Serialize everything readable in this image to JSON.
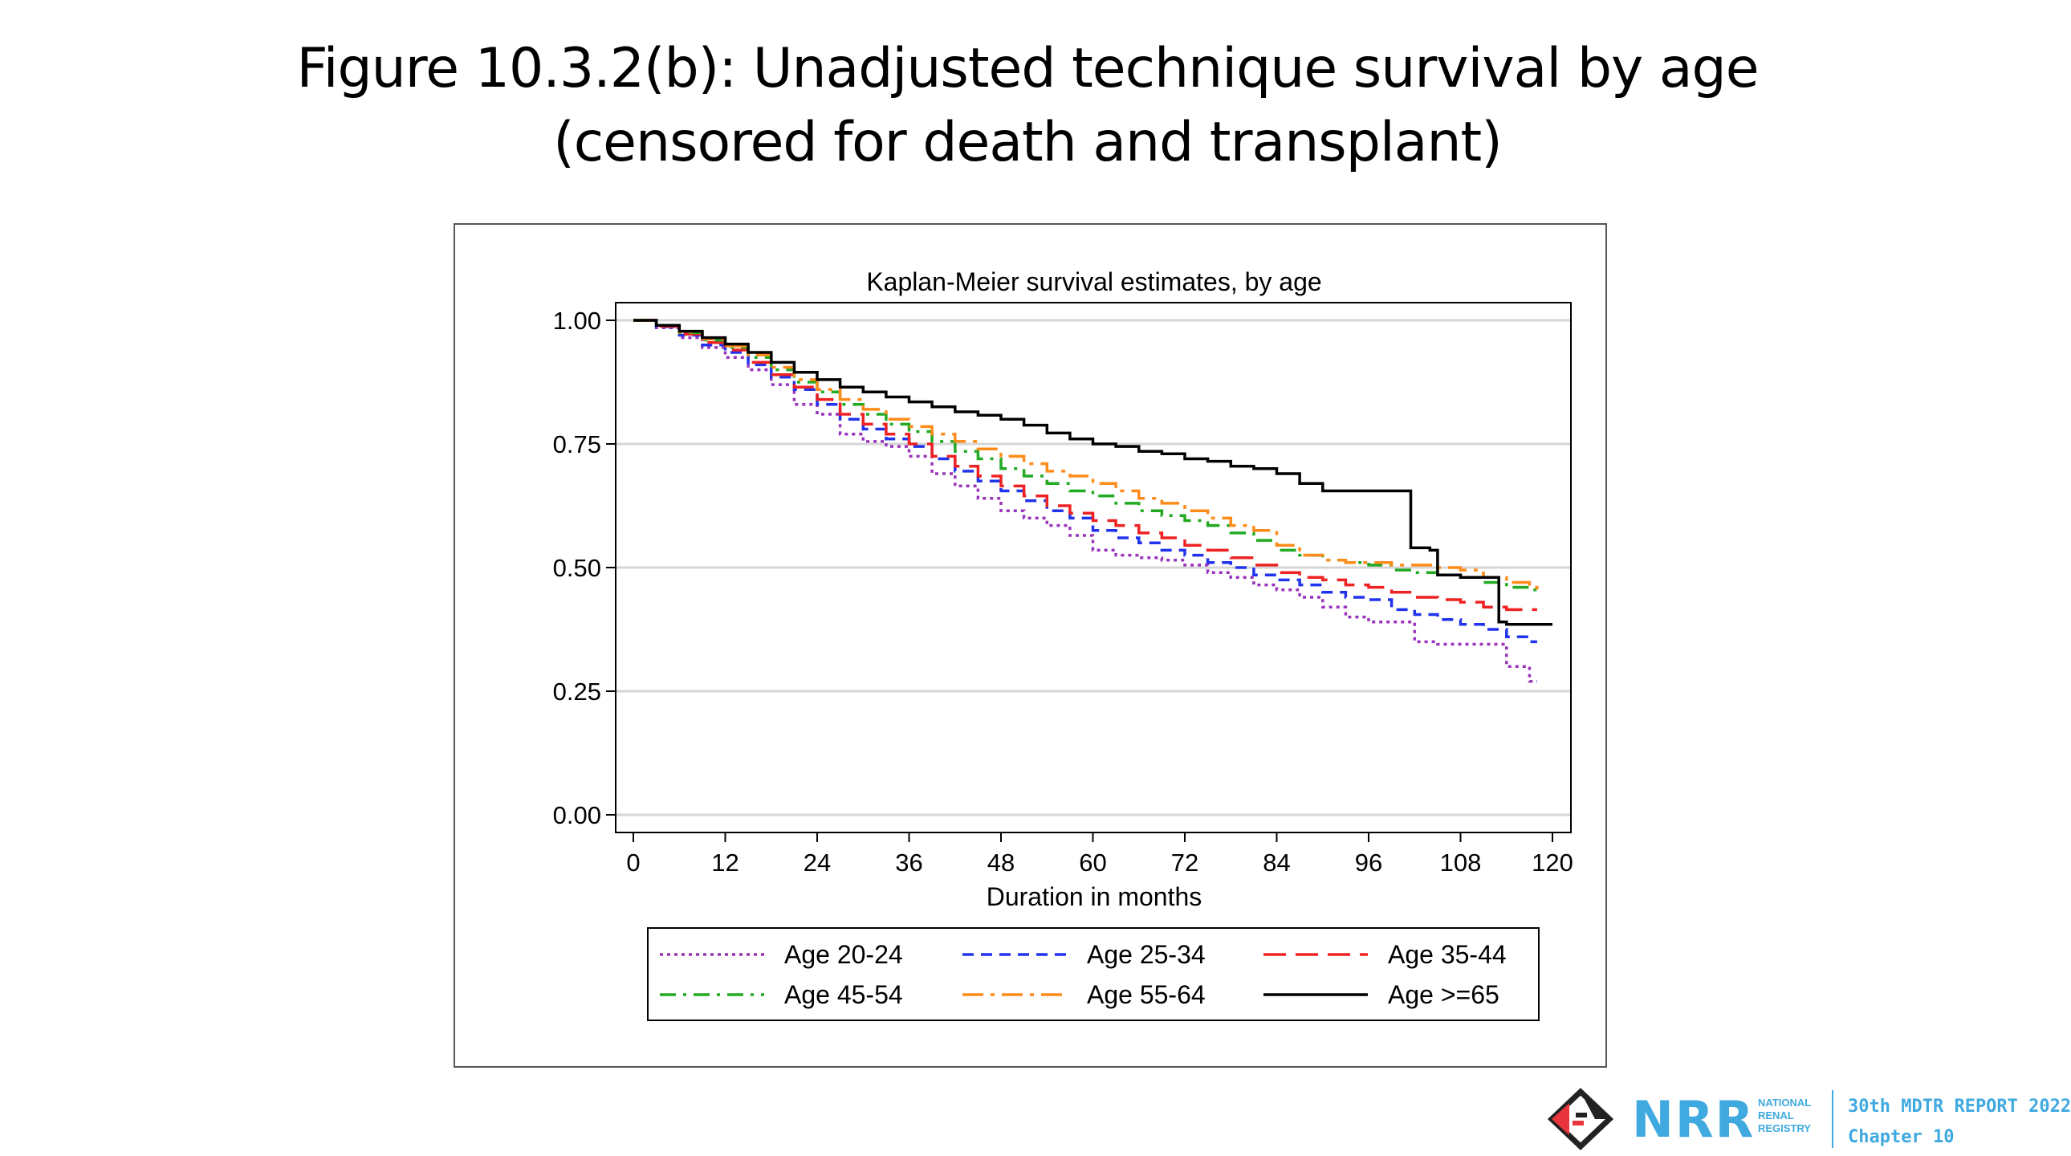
{
  "slide": {
    "title_line1": "Figure 10.3.2(b): Unadjusted technique survival by age",
    "title_line2": "(censored for death and transplant)"
  },
  "footer": {
    "org_line1": "NATIONAL",
    "org_line2": "RENAL",
    "org_line3": "REGISTRY",
    "logo_text": "NRR",
    "report": "30th MDTR REPORT 2022",
    "chapter": "Chapter 10",
    "colors": {
      "brand_blue": "#3fa9e0",
      "mark_red": "#e8343c",
      "mark_black": "#222222"
    }
  },
  "chart_data": {
    "type": "line",
    "title": "Kaplan-Meier survival estimates, by age",
    "xlabel": "Duration in months",
    "ylabel": "",
    "xlim": [
      0,
      120
    ],
    "ylim": [
      0,
      1
    ],
    "xticks": [
      0,
      12,
      24,
      36,
      48,
      60,
      72,
      84,
      96,
      108,
      120
    ],
    "yticks": [
      "0.00",
      "0.25",
      "0.50",
      "0.75",
      "1.00"
    ],
    "ytick_values": [
      0,
      0.25,
      0.5,
      0.75,
      1
    ],
    "grid": true,
    "legend_position": "bottom",
    "series": [
      {
        "name": "Age 20-24",
        "color": "#9933bb",
        "dash": "dotted",
        "x": [
          0,
          3,
          6,
          9,
          12,
          15,
          18,
          21,
          24,
          27,
          30,
          33,
          36,
          39,
          42,
          45,
          48,
          51,
          54,
          57,
          60,
          63,
          66,
          69,
          72,
          75,
          78,
          81,
          84,
          87,
          90,
          93,
          96,
          99,
          102,
          105,
          108,
          111,
          114,
          117,
          118
        ],
        "y": [
          1.0,
          0.985,
          0.965,
          0.945,
          0.925,
          0.9,
          0.87,
          0.83,
          0.81,
          0.77,
          0.755,
          0.745,
          0.725,
          0.69,
          0.665,
          0.64,
          0.615,
          0.6,
          0.585,
          0.565,
          0.535,
          0.525,
          0.52,
          0.515,
          0.505,
          0.49,
          0.48,
          0.465,
          0.455,
          0.44,
          0.42,
          0.4,
          0.39,
          0.39,
          0.35,
          0.345,
          0.345,
          0.345,
          0.3,
          0.27,
          0.27
        ]
      },
      {
        "name": "Age 25-34",
        "color": "#2233ee",
        "dash": "dashed",
        "x": [
          0,
          3,
          6,
          9,
          12,
          15,
          18,
          21,
          24,
          27,
          30,
          33,
          36,
          39,
          42,
          45,
          48,
          51,
          54,
          57,
          60,
          63,
          66,
          69,
          72,
          75,
          78,
          81,
          84,
          87,
          90,
          93,
          96,
          99,
          102,
          105,
          108,
          111,
          114,
          117,
          118
        ],
        "y": [
          1.0,
          0.987,
          0.97,
          0.95,
          0.935,
          0.91,
          0.885,
          0.86,
          0.83,
          0.8,
          0.78,
          0.76,
          0.745,
          0.72,
          0.695,
          0.675,
          0.655,
          0.635,
          0.615,
          0.6,
          0.575,
          0.56,
          0.55,
          0.535,
          0.525,
          0.51,
          0.5,
          0.485,
          0.475,
          0.465,
          0.45,
          0.44,
          0.435,
          0.415,
          0.405,
          0.395,
          0.385,
          0.375,
          0.36,
          0.35,
          0.35
        ]
      },
      {
        "name": "Age 35-44",
        "color": "#ee2222",
        "dash": "longdash",
        "x": [
          0,
          3,
          6,
          9,
          12,
          15,
          18,
          21,
          24,
          27,
          30,
          33,
          36,
          39,
          42,
          45,
          48,
          51,
          54,
          57,
          60,
          63,
          66,
          69,
          72,
          75,
          78,
          81,
          84,
          87,
          90,
          93,
          96,
          99,
          102,
          105,
          108,
          111,
          114,
          117,
          118
        ],
        "y": [
          1.0,
          0.988,
          0.972,
          0.955,
          0.94,
          0.915,
          0.89,
          0.865,
          0.84,
          0.81,
          0.79,
          0.77,
          0.75,
          0.725,
          0.705,
          0.685,
          0.665,
          0.645,
          0.625,
          0.61,
          0.595,
          0.585,
          0.57,
          0.56,
          0.545,
          0.535,
          0.52,
          0.505,
          0.49,
          0.48,
          0.475,
          0.465,
          0.46,
          0.45,
          0.44,
          0.435,
          0.43,
          0.42,
          0.415,
          0.415,
          0.415
        ]
      },
      {
        "name": "Age 45-54",
        "color": "#22aa22",
        "dash": "dashdot",
        "x": [
          0,
          3,
          6,
          9,
          12,
          15,
          18,
          21,
          24,
          27,
          30,
          33,
          36,
          39,
          42,
          45,
          48,
          51,
          54,
          57,
          60,
          63,
          66,
          69,
          72,
          75,
          78,
          81,
          84,
          87,
          90,
          93,
          96,
          99,
          102,
          105,
          108,
          111,
          114,
          117,
          118
        ],
        "y": [
          1.0,
          0.99,
          0.975,
          0.96,
          0.945,
          0.925,
          0.9,
          0.875,
          0.855,
          0.83,
          0.81,
          0.79,
          0.775,
          0.755,
          0.735,
          0.72,
          0.7,
          0.685,
          0.67,
          0.655,
          0.645,
          0.63,
          0.615,
          0.605,
          0.595,
          0.585,
          0.57,
          0.555,
          0.535,
          0.525,
          0.515,
          0.51,
          0.505,
          0.495,
          0.49,
          0.485,
          0.48,
          0.47,
          0.46,
          0.455,
          0.455
        ]
      },
      {
        "name": "Age 55-64",
        "color": "#ff8c1a",
        "dash": "longdashdot",
        "x": [
          0,
          3,
          6,
          9,
          12,
          15,
          18,
          21,
          24,
          27,
          30,
          33,
          36,
          39,
          42,
          45,
          48,
          51,
          54,
          57,
          60,
          63,
          66,
          69,
          72,
          75,
          78,
          81,
          84,
          87,
          90,
          93,
          96,
          99,
          102,
          105,
          108,
          111,
          114,
          117,
          118
        ],
        "y": [
          1.0,
          0.99,
          0.976,
          0.962,
          0.948,
          0.93,
          0.905,
          0.88,
          0.86,
          0.84,
          0.82,
          0.8,
          0.785,
          0.77,
          0.755,
          0.74,
          0.725,
          0.71,
          0.695,
          0.685,
          0.67,
          0.655,
          0.64,
          0.63,
          0.615,
          0.6,
          0.585,
          0.575,
          0.545,
          0.525,
          0.515,
          0.51,
          0.51,
          0.505,
          0.505,
          0.5,
          0.495,
          0.48,
          0.47,
          0.46,
          0.45
        ]
      },
      {
        "name": "Age >=65",
        "color": "#000000",
        "dash": "solid",
        "x": [
          0,
          3,
          6,
          9,
          12,
          15,
          18,
          21,
          24,
          27,
          30,
          33,
          36,
          39,
          42,
          45,
          48,
          51,
          54,
          57,
          60,
          63,
          66,
          69,
          72,
          75,
          78,
          81,
          84,
          87,
          90,
          93,
          96,
          99,
          100.5,
          101.5,
          104,
          105,
          108,
          111,
          112.5,
          113,
          114,
          117,
          120
        ],
        "y": [
          1.0,
          0.99,
          0.978,
          0.965,
          0.952,
          0.935,
          0.915,
          0.895,
          0.88,
          0.865,
          0.855,
          0.845,
          0.835,
          0.825,
          0.815,
          0.808,
          0.8,
          0.788,
          0.772,
          0.76,
          0.75,
          0.745,
          0.735,
          0.73,
          0.72,
          0.715,
          0.705,
          0.7,
          0.69,
          0.67,
          0.655,
          0.655,
          0.655,
          0.655,
          0.655,
          0.54,
          0.535,
          0.485,
          0.48,
          0.48,
          0.48,
          0.39,
          0.385,
          0.385,
          0.385
        ]
      }
    ]
  }
}
